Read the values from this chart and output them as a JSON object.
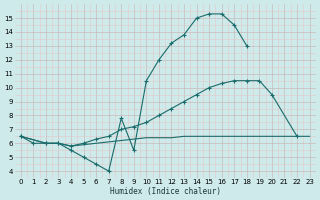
{
  "xlabel": "Humidex (Indice chaleur)",
  "bg_color": "#ceeaea",
  "grid_major_color": "#c0b0b0",
  "grid_minor_color": "#ddd8d8",
  "line_color": "#1a6b6b",
  "line1_x": [
    0,
    1,
    2,
    3,
    4,
    5,
    6,
    7,
    8,
    9,
    10,
    11,
    12,
    13,
    14,
    15,
    16,
    17,
    18
  ],
  "line1_y": [
    6.5,
    6.0,
    6.0,
    6.0,
    5.5,
    5.0,
    4.5,
    4.0,
    7.8,
    5.5,
    10.5,
    12.0,
    13.2,
    13.8,
    15.0,
    15.3,
    15.3,
    14.5,
    13.0
  ],
  "line2_x": [
    0,
    2,
    3,
    4,
    5,
    6,
    7,
    8,
    9,
    10,
    11,
    12,
    13,
    14,
    15,
    16,
    17,
    18,
    19,
    20,
    22
  ],
  "line2_y": [
    6.5,
    6.0,
    6.0,
    5.8,
    6.0,
    6.3,
    6.5,
    7.0,
    7.2,
    7.5,
    8.0,
    8.5,
    9.0,
    9.5,
    10.0,
    10.3,
    10.5,
    10.5,
    10.5,
    9.5,
    6.5
  ],
  "line3_x": [
    0,
    2,
    3,
    4,
    5,
    6,
    7,
    8,
    9,
    10,
    11,
    12,
    13,
    14,
    15,
    16,
    17,
    18,
    19,
    20,
    21,
    22,
    23
  ],
  "line3_y": [
    6.5,
    6.0,
    6.0,
    5.8,
    5.9,
    6.0,
    6.1,
    6.2,
    6.3,
    6.4,
    6.4,
    6.4,
    6.5,
    6.5,
    6.5,
    6.5,
    6.5,
    6.5,
    6.5,
    6.5,
    6.5,
    6.5,
    6.5
  ],
  "xlim": [
    -0.5,
    23.5
  ],
  "ylim": [
    3.5,
    16.0
  ],
  "yticks": [
    4,
    5,
    6,
    7,
    8,
    9,
    10,
    11,
    12,
    13,
    14,
    15
  ],
  "xticks": [
    0,
    1,
    2,
    3,
    4,
    5,
    6,
    7,
    8,
    9,
    10,
    11,
    12,
    13,
    14,
    15,
    16,
    17,
    18,
    19,
    20,
    21,
    22,
    23
  ]
}
